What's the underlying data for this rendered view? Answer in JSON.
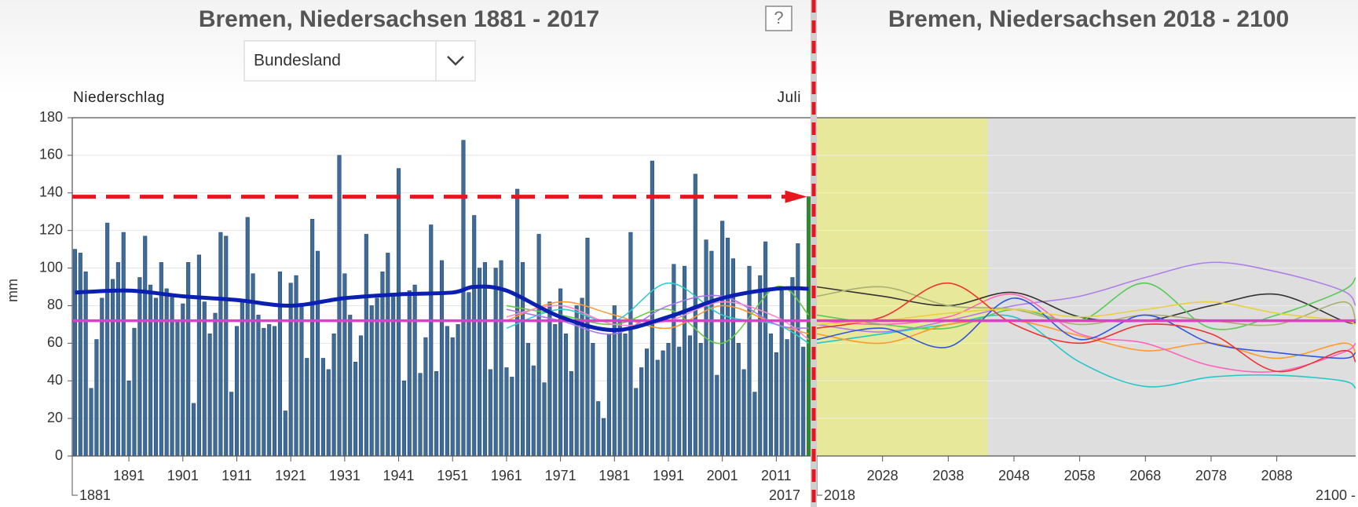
{
  "header": {
    "left_title": "Bremen, Niedersachsen 1881 - 2017",
    "right_title": "Bremen, Niedersachsen 2018 - 2100",
    "help": "?",
    "dropdown": "Bundesland"
  },
  "chart_data": [
    {
      "type": "bar",
      "variable": "Niederschlag",
      "month": "Juli",
      "y_label": "mm",
      "ylim": [
        0,
        180
      ],
      "yticks": [
        0,
        20,
        40,
        60,
        80,
        100,
        120,
        140,
        160,
        180
      ],
      "grid": true,
      "xlim": [
        1880.5,
        2017.5
      ],
      "xticks": [
        1891,
        1901,
        1911,
        1921,
        1931,
        1941,
        1951,
        1961,
        1971,
        1981,
        1991,
        2001,
        2011
      ],
      "start_label": "1881",
      "end_label": "2017",
      "color": "#3f6b99",
      "last_color": "#2f8a2f",
      "x": [
        1881,
        1882,
        1883,
        1884,
        1885,
        1886,
        1887,
        1888,
        1889,
        1890,
        1891,
        1892,
        1893,
        1894,
        1895,
        1896,
        1897,
        1898,
        1899,
        1900,
        1901,
        1902,
        1903,
        1904,
        1905,
        1906,
        1907,
        1908,
        1909,
        1910,
        1911,
        1912,
        1913,
        1914,
        1915,
        1916,
        1917,
        1918,
        1919,
        1920,
        1921,
        1922,
        1923,
        1924,
        1925,
        1926,
        1927,
        1928,
        1929,
        1930,
        1931,
        1932,
        1933,
        1934,
        1935,
        1936,
        1937,
        1938,
        1939,
        1940,
        1941,
        1942,
        1943,
        1944,
        1945,
        1946,
        1947,
        1948,
        1949,
        1950,
        1951,
        1952,
        1953,
        1954,
        1955,
        1956,
        1957,
        1958,
        1959,
        1960,
        1961,
        1962,
        1963,
        1964,
        1965,
        1966,
        1967,
        1968,
        1969,
        1970,
        1971,
        1972,
        1973,
        1974,
        1975,
        1976,
        1977,
        1978,
        1979,
        1980,
        1981,
        1982,
        1983,
        1984,
        1985,
        1986,
        1987,
        1988,
        1989,
        1990,
        1991,
        1992,
        1993,
        1994,
        1995,
        1996,
        1997,
        1998,
        1999,
        2000,
        2001,
        2002,
        2003,
        2004,
        2005,
        2006,
        2007,
        2008,
        2009,
        2010,
        2011,
        2012,
        2013,
        2014,
        2015,
        2016,
        2017
      ],
      "values": [
        110,
        108,
        98,
        36,
        62,
        84,
        124,
        94,
        103,
        119,
        40,
        68,
        95,
        117,
        91,
        84,
        103,
        89,
        85,
        72,
        81,
        103,
        28,
        107,
        82,
        65,
        76,
        119,
        117,
        34,
        69,
        83,
        127,
        97,
        75,
        68,
        70,
        69,
        98,
        24,
        92,
        96,
        80,
        52,
        126,
        109,
        52,
        46,
        65,
        160,
        97,
        75,
        50,
        64,
        118,
        80,
        84,
        98,
        108,
        86,
        153,
        40,
        88,
        91,
        44,
        63,
        123,
        45,
        104,
        69,
        63,
        70,
        168,
        87,
        128,
        100,
        103,
        46,
        100,
        104,
        47,
        42,
        142,
        103,
        60,
        48,
        118,
        39,
        82,
        70,
        89,
        65,
        45,
        80,
        84,
        116,
        60,
        29,
        20,
        65,
        80,
        72,
        65,
        119,
        36,
        47,
        57,
        157,
        51,
        56,
        60,
        102,
        58,
        101,
        64,
        150,
        60,
        115,
        109,
        43,
        125,
        116,
        105,
        60,
        46,
        101,
        34,
        96,
        114,
        65,
        55,
        88,
        62,
        95,
        113,
        58,
        138
      ],
      "smooth": {
        "color": "#0b20b0",
        "x": [
          1881,
          1891,
          1901,
          1911,
          1921,
          1931,
          1941,
          1951,
          1955,
          1961,
          1971,
          1981,
          1991,
          2001,
          2011,
          2017
        ],
        "values": [
          87,
          88,
          85,
          83,
          80,
          84,
          86,
          87,
          90,
          88,
          74,
          67,
          74,
          84,
          89,
          89
        ]
      },
      "ensemble_x": [
        1961,
        1971,
        1981,
        1991,
        2001,
        2011,
        2017
      ],
      "ensemble": [
        {
          "color": "#ff9933",
          "values": [
            72,
            82,
            75,
            68,
            80,
            70,
            65
          ]
        },
        {
          "color": "#66cc44",
          "values": [
            80,
            75,
            70,
            78,
            60,
            90,
            75
          ]
        },
        {
          "color": "#33cccc",
          "values": [
            68,
            78,
            72,
            92,
            75,
            70,
            60
          ]
        },
        {
          "color": "#aa77ee",
          "values": [
            78,
            72,
            65,
            80,
            85,
            70,
            68
          ]
        },
        {
          "color": "#ff88cc",
          "values": [
            74,
            80,
            70,
            72,
            82,
            74,
            62
          ]
        }
      ],
      "mean_line": 72,
      "mean_color": "#e23cc8",
      "reference_line": 138,
      "reference_color": "#e8141e"
    },
    {
      "type": "line",
      "ylim": [
        0,
        180
      ],
      "yticks": [
        0,
        20,
        40,
        60,
        80,
        100,
        120,
        140,
        160,
        180
      ],
      "grid": true,
      "xlim": [
        2018,
        2100
      ],
      "xticks": [
        2028,
        2038,
        2048,
        2058,
        2068,
        2078,
        2088
      ],
      "start_label": "2018",
      "end_label": "2100 -",
      "band": [
        2018,
        2044
      ],
      "band_color": "#e8e89a",
      "background": "#dedede",
      "ensemble_x": [
        2018,
        2028,
        2038,
        2048,
        2058,
        2068,
        2078,
        2088,
        2098,
        2100
      ],
      "ensemble": [
        {
          "color": "#b07ee8",
          "values": [
            70,
            66,
            72,
            80,
            85,
            95,
            103,
            98,
            88,
            80
          ]
        },
        {
          "color": "#333333",
          "values": [
            90,
            85,
            80,
            87,
            74,
            72,
            80,
            86,
            72,
            71
          ]
        },
        {
          "color": "#22c8c8",
          "values": [
            60,
            65,
            70,
            74,
            50,
            37,
            42,
            43,
            40,
            36
          ]
        },
        {
          "color": "#55cc55",
          "values": [
            75,
            70,
            68,
            78,
            72,
            92,
            68,
            75,
            88,
            95
          ]
        },
        {
          "color": "#a8b070",
          "values": [
            85,
            90,
            80,
            78,
            70,
            75,
            72,
            70,
            82,
            72
          ]
        },
        {
          "color": "#ff9a2a",
          "values": [
            65,
            60,
            70,
            72,
            64,
            56,
            60,
            52,
            60,
            55
          ]
        },
        {
          "color": "#ff66bb",
          "values": [
            72,
            70,
            74,
            86,
            65,
            60,
            48,
            45,
            55,
            60
          ]
        },
        {
          "color": "#3355dd",
          "values": [
            62,
            68,
            58,
            84,
            62,
            75,
            60,
            55,
            52,
            55
          ]
        },
        {
          "color": "#ee3333",
          "values": [
            68,
            74,
            92,
            70,
            60,
            70,
            65,
            45,
            56,
            50
          ]
        },
        {
          "color": "#e6d23a",
          "values": [
            70,
            72,
            76,
            78,
            74,
            78,
            82,
            76,
            72,
            70
          ]
        }
      ],
      "mean_line": 72,
      "mean_color": "#e23cc8"
    }
  ]
}
